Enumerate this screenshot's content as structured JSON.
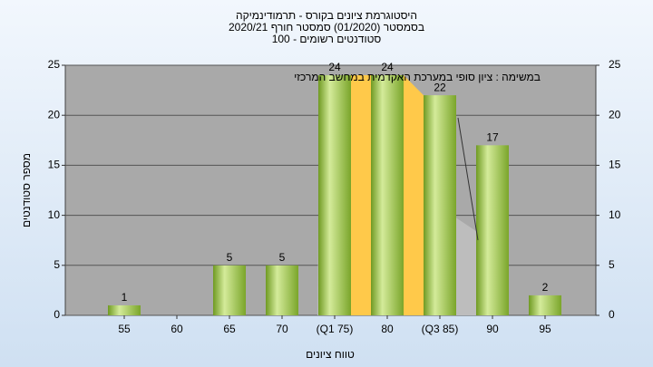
{
  "chart_data": {
    "type": "bar",
    "title": "היסטוגרמת ציונים בקורס - תרמודינמיקה",
    "subtitle": "בסמסטר  (01/2020)  סמסטר חורף 2020/21",
    "subtitle2": "סטודנטים רשומים - 100",
    "annotation": "במשימה : ציון סופי במערכת האקדמית במחשב המרכזי",
    "xlabel": "טווח ציונים",
    "ylabel": "מספר סטודנטים",
    "categories": [
      "55",
      "60",
      "65",
      "70",
      "(Q1 75)",
      "80",
      "(Q3 85)",
      "90",
      "95"
    ],
    "values": [
      1,
      0,
      5,
      5,
      24,
      24,
      22,
      17,
      2
    ],
    "color": "#8db33a",
    "ylim": [
      0,
      25
    ],
    "yticks": [
      0,
      5,
      10,
      15,
      20,
      25
    ],
    "y2lim": [
      0,
      25
    ],
    "y2ticks": [
      0,
      5,
      10,
      15,
      20,
      25
    ],
    "grid": true
  }
}
